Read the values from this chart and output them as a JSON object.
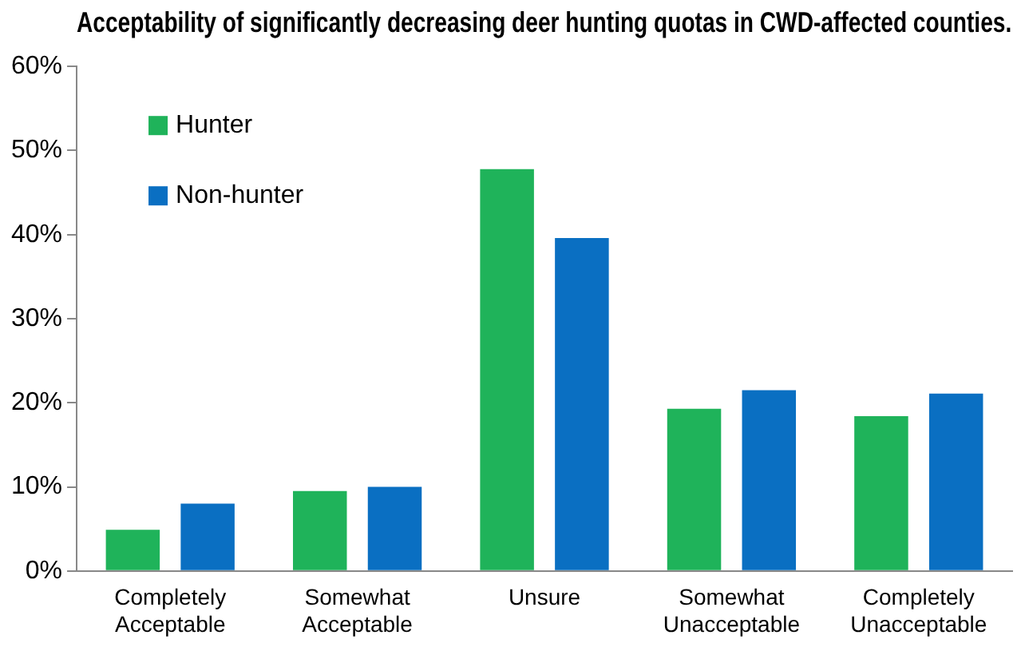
{
  "chart_data": {
    "type": "bar",
    "title": "Acceptability of significantly decreasing deer hunting quotas in CWD-affected counties.",
    "categories": [
      "Completely Acceptable",
      "Somewhat Acceptable",
      "Unsure",
      "Somewhat Unacceptable",
      "Completely Unacceptable"
    ],
    "series": [
      {
        "name": "Hunter",
        "color": "#1fb35a",
        "values": [
          4.9,
          9.5,
          47.8,
          19.3,
          18.4
        ]
      },
      {
        "name": "Non-hunter",
        "color": "#0a6fc2",
        "values": [
          8.0,
          10.0,
          39.6,
          21.5,
          21.1
        ]
      }
    ],
    "ylim": [
      0,
      60
    ],
    "yticks": [
      {
        "value": 0,
        "label": "0%"
      },
      {
        "value": 10,
        "label": "10%"
      },
      {
        "value": 20,
        "label": "20%"
      },
      {
        "value": 30,
        "label": "30%"
      },
      {
        "value": 40,
        "label": "40%"
      },
      {
        "value": 50,
        "label": "50%"
      },
      {
        "value": 60,
        "label": "60%"
      }
    ],
    "grid": false,
    "legend": "top left"
  }
}
